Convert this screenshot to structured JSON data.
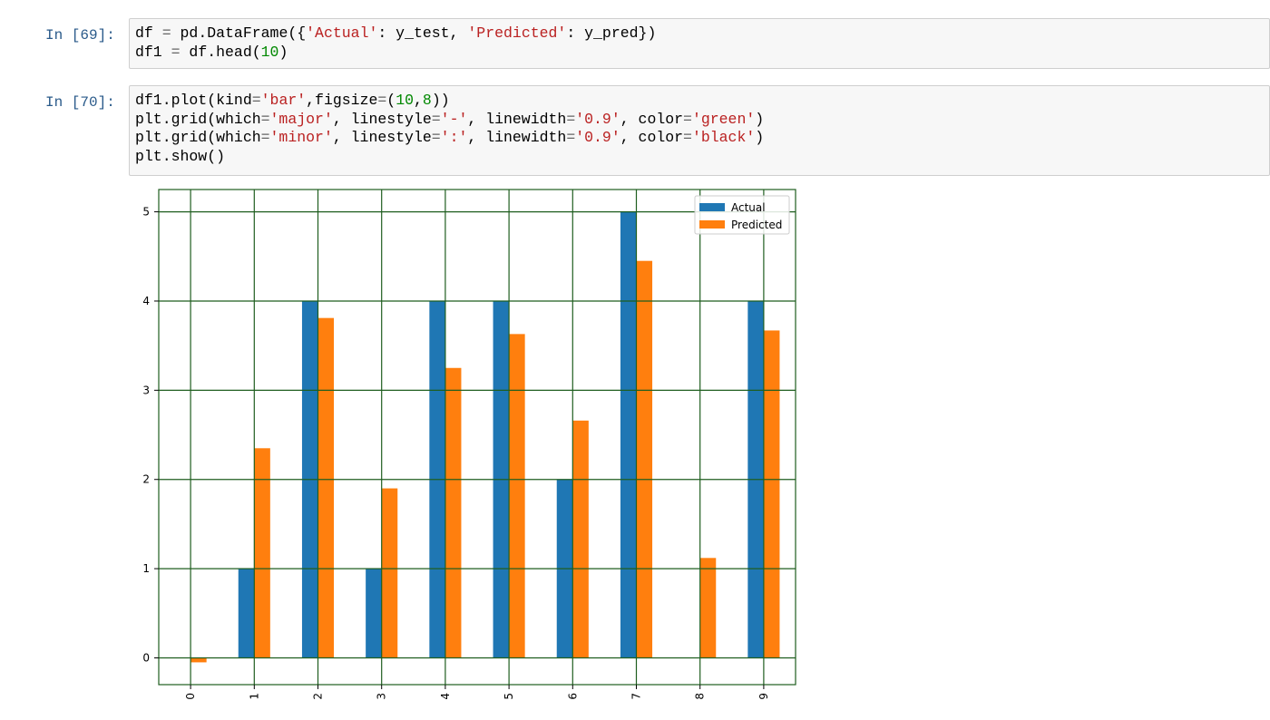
{
  "cells": [
    {
      "prompt": "In [69]:",
      "lines": [
        [
          {
            "t": "df "
          },
          {
            "t": "=",
            "c": "op"
          },
          {
            "t": " pd.DataFrame({"
          },
          {
            "t": "'Actual'",
            "c": "str"
          },
          {
            "t": ": y_test, "
          },
          {
            "t": "'Predicted'",
            "c": "str"
          },
          {
            "t": ": y_pred})"
          }
        ],
        [
          {
            "t": "df1 "
          },
          {
            "t": "=",
            "c": "op"
          },
          {
            "t": " df.head("
          },
          {
            "t": "10",
            "c": "num"
          },
          {
            "t": ")"
          }
        ]
      ]
    },
    {
      "prompt": "In [70]:",
      "lines": [
        [
          {
            "t": "df1.plot(kind"
          },
          {
            "t": "=",
            "c": "op"
          },
          {
            "t": "'bar'",
            "c": "str"
          },
          {
            "t": ",figsize"
          },
          {
            "t": "=",
            "c": "op"
          },
          {
            "t": "("
          },
          {
            "t": "10",
            "c": "num"
          },
          {
            "t": ","
          },
          {
            "t": "8",
            "c": "num"
          },
          {
            "t": "))"
          }
        ],
        [
          {
            "t": "plt.grid(which"
          },
          {
            "t": "=",
            "c": "op"
          },
          {
            "t": "'major'",
            "c": "str"
          },
          {
            "t": ", linestyle"
          },
          {
            "t": "=",
            "c": "op"
          },
          {
            "t": "'-'",
            "c": "str"
          },
          {
            "t": ", linewidth"
          },
          {
            "t": "=",
            "c": "op"
          },
          {
            "t": "'0.9'",
            "c": "str"
          },
          {
            "t": ", color"
          },
          {
            "t": "=",
            "c": "op"
          },
          {
            "t": "'green'",
            "c": "str"
          },
          {
            "t": ")"
          }
        ],
        [
          {
            "t": "plt.grid(which"
          },
          {
            "t": "=",
            "c": "op"
          },
          {
            "t": "'minor'",
            "c": "str"
          },
          {
            "t": ", linestyle"
          },
          {
            "t": "=",
            "c": "op"
          },
          {
            "t": "':'",
            "c": "str"
          },
          {
            "t": ", linewidth"
          },
          {
            "t": "=",
            "c": "op"
          },
          {
            "t": "'0.9'",
            "c": "str"
          },
          {
            "t": ", color"
          },
          {
            "t": "=",
            "c": "op"
          },
          {
            "t": "'black'",
            "c": "str"
          },
          {
            "t": ")"
          }
        ],
        [
          {
            "t": "plt.show()"
          }
        ]
      ]
    }
  ],
  "colors": {
    "actual": "#1f77b4",
    "predicted": "#ff7f0e",
    "grid": "#1f5e1f",
    "prompt": "#2a5a8a"
  },
  "chart_data": {
    "type": "bar",
    "categories": [
      "0",
      "1",
      "2",
      "3",
      "4",
      "5",
      "6",
      "7",
      "8",
      "9"
    ],
    "series": [
      {
        "name": "Actual",
        "values": [
          0,
          1,
          4,
          1,
          4,
          4,
          2,
          5,
          0,
          4
        ]
      },
      {
        "name": "Predicted",
        "values": [
          -0.05,
          2.35,
          3.81,
          1.9,
          3.25,
          3.63,
          2.66,
          4.45,
          1.12,
          3.67
        ]
      }
    ],
    "title": "",
    "xlabel": "",
    "ylabel": "",
    "ylim": [
      -0.3,
      5.25
    ],
    "yticks": [
      0,
      1,
      2,
      3,
      4,
      5
    ],
    "grid": true,
    "legend_position": "upper right"
  }
}
